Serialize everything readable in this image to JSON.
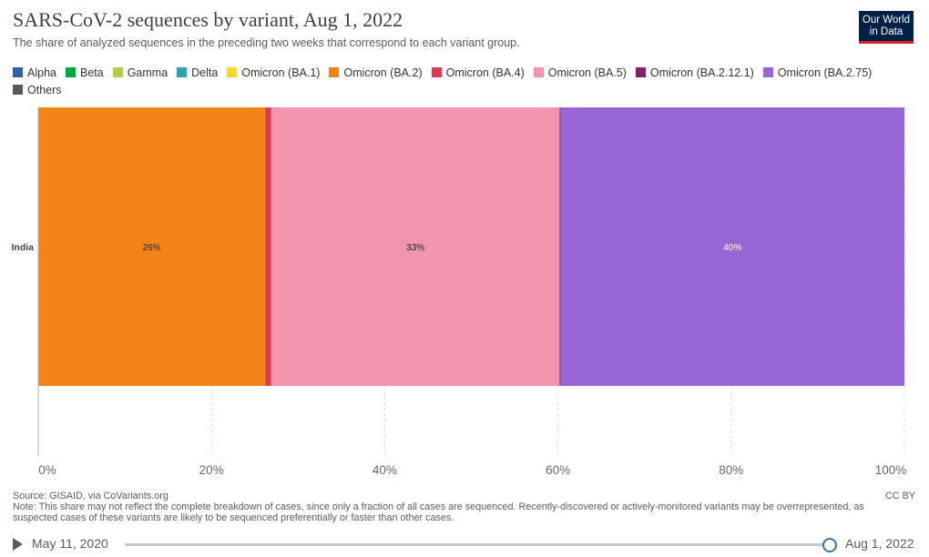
{
  "header": {
    "title": "SARS-CoV-2 sequences by variant, Aug 1, 2022",
    "subtitle": "The share of analyzed sequences in the preceding two weeks that correspond to each variant group.",
    "logo_line1": "Our World",
    "logo_line2": "in Data"
  },
  "legend": [
    {
      "label": "Alpha",
      "color": "#3360a9"
    },
    {
      "label": "Beta",
      "color": "#00a63e"
    },
    {
      "label": "Gamma",
      "color": "#b6ca4e"
    },
    {
      "label": "Delta",
      "color": "#2fa3b0"
    },
    {
      "label": "Omicron (BA.1)",
      "color": "#f4da25"
    },
    {
      "label": "Omicron (BA.2)",
      "color": "#f28417"
    },
    {
      "label": "Omicron (BA.4)",
      "color": "#dd3b4f"
    },
    {
      "label": "Omicron (BA.5)",
      "color": "#f095ad"
    },
    {
      "label": "Omicron (BA.2.12.1)",
      "color": "#8b1e68"
    },
    {
      "label": "Omicron (BA.2.75)",
      "color": "#9966d6"
    },
    {
      "label": "Others",
      "color": "#555a5e"
    }
  ],
  "chart_data": {
    "type": "bar",
    "orientation": "horizontal",
    "stacked": true,
    "categories": [
      "India"
    ],
    "series": [
      {
        "name": "Omicron (BA.2)",
        "values": [
          26.2
        ],
        "label": "26%",
        "color": "#f28417"
      },
      {
        "name": "Omicron (BA.4)",
        "values": [
          0.7
        ],
        "label": "",
        "color": "#dd3b4f"
      },
      {
        "name": "Omicron (BA.5)",
        "values": [
          33.3
        ],
        "label": "33%",
        "color": "#f095ad"
      },
      {
        "name": "Omicron (BA.2.12.1)",
        "values": [
          0.1
        ],
        "label": "",
        "color": "#8b1e68"
      },
      {
        "name": "Omicron (BA.2.75)",
        "values": [
          39.7
        ],
        "label": "40%",
        "color": "#9966d6"
      }
    ],
    "xlim": [
      0,
      100
    ],
    "xticks": [
      0,
      20,
      40,
      60,
      80,
      100
    ],
    "xtick_labels": [
      "0%",
      "20%",
      "40%",
      "60%",
      "80%",
      "100%"
    ],
    "grid": true
  },
  "footer": {
    "source": "Source: GISAID, via CoVariants.org",
    "note": "Note: This share may not reflect the complete breakdown of cases, since only a fraction of all cases are sequenced. Recently-discovered or actively-monitored variants may be overrepresented, as suspected cases of these variants are likely to be sequenced preferentially or faster than other cases.",
    "license": "CC BY"
  },
  "timeline": {
    "start_label": "May 11, 2020",
    "end_label": "Aug 1, 2022",
    "position": 1.0
  }
}
